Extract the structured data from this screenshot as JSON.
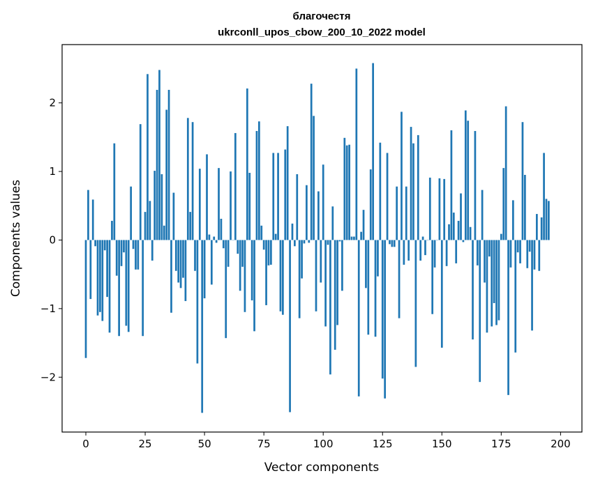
{
  "chart_data": {
    "type": "bar",
    "title": "благочестя",
    "subtitle": "ukrconll_upos_cbow_200_10_2022 model",
    "xlabel": "Vector components",
    "ylabel": "Components values",
    "xlim": [
      -10,
      209
    ],
    "ylim": [
      -2.8,
      2.85
    ],
    "xticks": [
      0,
      25,
      50,
      75,
      100,
      125,
      150,
      175,
      200
    ],
    "yticks": [
      -2,
      -1,
      0,
      1,
      2
    ],
    "xtick_labels": [
      "0",
      "25",
      "50",
      "75",
      "100",
      "125",
      "150",
      "175",
      "200"
    ],
    "ytick_labels": [
      "−2",
      "−1",
      "0",
      "1",
      "2"
    ],
    "grid": false,
    "bar_color": "#1f77b4",
    "x_start": 0,
    "values": [
      -1.72,
      0.73,
      -0.86,
      0.59,
      -0.09,
      -1.1,
      -1.05,
      -1.18,
      -0.15,
      -0.83,
      -1.35,
      0.28,
      1.41,
      -0.52,
      -1.4,
      -0.38,
      -0.18,
      -1.25,
      -1.34,
      0.78,
      -0.13,
      -0.43,
      -0.43,
      1.69,
      -1.4,
      0.41,
      2.42,
      0.57,
      -0.3,
      1.01,
      2.19,
      2.48,
      0.96,
      0.21,
      1.9,
      2.19,
      -1.06,
      0.69,
      -0.45,
      -0.62,
      -0.7,
      -0.55,
      -0.89,
      1.78,
      0.41,
      1.72,
      -0.45,
      -1.8,
      1.04,
      -2.52,
      -0.85,
      1.25,
      0.08,
      -0.65,
      0.05,
      -0.04,
      1.05,
      0.31,
      -0.12,
      -1.43,
      -0.39,
      1.0,
      0.0,
      1.56,
      -0.2,
      -0.74,
      -0.39,
      -1.05,
      2.21,
      0.98,
      -0.88,
      -1.33,
      1.59,
      1.73,
      0.21,
      -0.14,
      -0.95,
      -0.37,
      -0.36,
      1.27,
      0.09,
      1.27,
      -1.04,
      -1.09,
      1.32,
      1.66,
      -2.51,
      0.24,
      -0.09,
      0.96,
      -1.14,
      -0.56,
      -0.05,
      0.8,
      -0.04,
      2.28,
      1.81,
      -1.04,
      0.71,
      -0.62,
      1.1,
      -1.26,
      -0.07,
      -1.96,
      0.49,
      -1.6,
      -1.24,
      -0.02,
      -0.74,
      1.49,
      1.38,
      1.39,
      0.05,
      0.05,
      2.5,
      -2.28,
      0.12,
      0.44,
      -0.7,
      -1.38,
      1.03,
      2.58,
      -1.41,
      -0.53,
      1.42,
      -2.02,
      -2.31,
      1.27,
      -0.06,
      -0.1,
      -0.1,
      0.78,
      -1.14,
      1.87,
      -0.36,
      0.78,
      -0.3,
      1.65,
      1.41,
      -1.85,
      1.53,
      -0.3,
      0.05,
      -0.22,
      0.0,
      0.91,
      -1.08,
      -0.4,
      0.0,
      0.9,
      -1.57,
      0.89,
      -0.38,
      0.23,
      1.6,
      0.4,
      -0.34,
      0.28,
      0.68,
      -0.03,
      1.89,
      1.74,
      0.19,
      -1.45,
      1.59,
      -0.37,
      -2.07,
      0.73,
      -0.62,
      -1.35,
      -0.24,
      -1.26,
      -0.92,
      -1.24,
      -1.17,
      0.09,
      1.05,
      1.95,
      -2.26,
      -0.4,
      0.58,
      -1.64,
      -0.18,
      -0.34,
      1.72,
      0.95,
      -0.41,
      -0.17,
      -1.32,
      -0.43,
      0.38,
      -0.45,
      0.33,
      1.27,
      0.6,
      0.57
    ]
  }
}
